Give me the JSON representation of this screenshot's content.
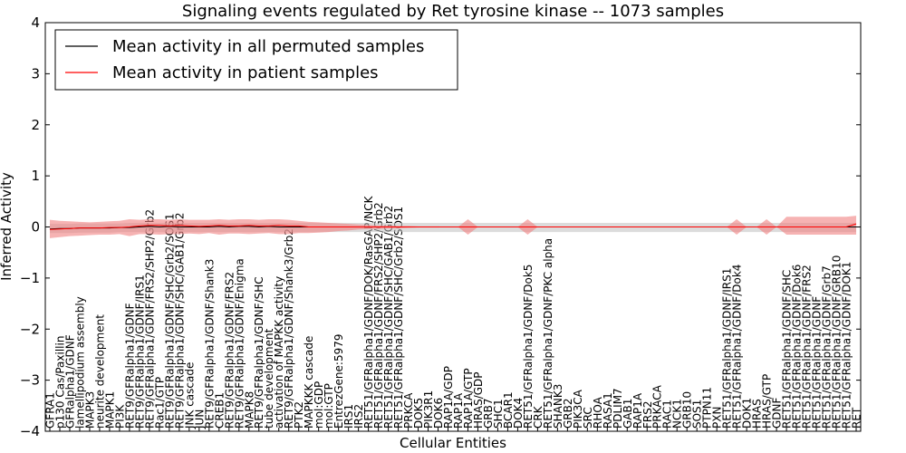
{
  "chart_data": {
    "type": "line",
    "title": "Signaling events regulated by Ret tyrosine kinase -- 1073 samples",
    "xlabel": "Cellular Entities",
    "ylabel": "Inferred Activity",
    "ylim": [
      -4,
      4
    ],
    "yticks": [
      -4,
      -3,
      -2,
      -1,
      0,
      1,
      2,
      3,
      4
    ],
    "ytick_labels": [
      "−4",
      "−3",
      "−2",
      "−1",
      "0",
      "1",
      "2",
      "3",
      "4"
    ],
    "legend": {
      "location": "top-left",
      "entries": [
        "Mean activity in all permuted samples",
        "Mean activity in patient samples"
      ]
    },
    "categories": [
      "GFRA1",
      "p130 Cas/Paxillin",
      "GFRalpha1/GDNF",
      "lamellipodium assembly",
      "MAPK3",
      "neurite development",
      "MAPK1",
      "PI3K",
      "RET9/GFRalpha1/GDNF",
      "RET9/GFRalpha1/GDNF/IRS1",
      "RET9/GFRalpha1/GDNF/FRS2/SHP2/Grb2",
      "Rac1/GTP",
      "RET9/GFRalpha1/GDNF/SHC/Grb2/SOS1",
      "RET9/GFRalpha1/GDNF/SHC/GAB1/Grb2",
      "JNK cascade",
      "JUN",
      "RET9/GFRalpha1/GDNF/Shank3",
      "CREB1",
      "RET9/GFRalpha1/GDNF/FRS2",
      "RET9/GFRalpha1/GDNF/Enigma",
      "MAPK8",
      "RET9/GFRalpha1/GDNF/SHC",
      "tube development",
      "activation of MAPKK activity",
      "RET9/GFRalpha1/GDNF/Shank3/Grb2",
      "PTK2",
      "MAPKKK cascade",
      "mol:GDP",
      "mol:GTP",
      "EntrezGene:5979",
      "IRS1",
      "IRS2",
      "RET51/GFRalpha1/GDNF/DOK/RasGAP/NCK",
      "RET51/GFRalpha1/GDNF/FRS2/SHP2/Grb2",
      "RET51/GFRalpha1/GDNF/SHC/GAB1/Grb2",
      "RET51/GFRalpha1/GDNF/SHC/Grb2/SOS1",
      "PRKCA",
      "DOK5",
      "PIK3R1",
      "DOK6",
      "RAP1A/GDP",
      "RAP1A",
      "RAP1A/GTP",
      "HRAS/GDP",
      "GRB7",
      "SHC1",
      "BCAR1",
      "DOK4",
      "RET51/GFRalpha1/GDNF/Dok5",
      "CRK",
      "RET51/GFRalpha1/GDNF/PKC alpha",
      "SHANK3",
      "GRB2",
      "PIK3CA",
      "SRC",
      "RHOA",
      "RASA1",
      "PDLIM7",
      "GAB1",
      "RAP1A",
      "FRS2",
      "PRKACA",
      "RAC1",
      "NCK1",
      "GRB10",
      "SOS1",
      "PTPN11",
      "PXN",
      "RET51/GFRalpha1/GDNF/IRS1",
      "RET51/GFRalpha1/GDNF/Dok4",
      "DOK1",
      "HRAS",
      "HRAS/GTP",
      "GDNF",
      "RET51/GFRalpha1/GDNF/SHC",
      "RET51/GFRalpha1/GDNF/Dok6",
      "RET51/GFRalpha1/GDNF/FRS2",
      "RET51/GFRalpha1/GDNF",
      "RET51/GFRalpha1/GDNF/Grb7",
      "RET51/GFRalpha1/GDNF/GRB10",
      "RET51/GFRalpha1/GDNF/DOK1",
      "RET"
    ],
    "series": [
      {
        "name": "Mean activity in all permuted samples",
        "color": "#000000",
        "band_color": "#c0c0c0",
        "values": [
          -0.04,
          -0.03,
          -0.03,
          -0.02,
          -0.02,
          -0.02,
          -0.02,
          -0.01,
          -0.01,
          0.0,
          0.01,
          0.0,
          0.01,
          0.0,
          0.0,
          0.0,
          0.0,
          0.01,
          0.0,
          0.01,
          0.01,
          0.0,
          0.01,
          0.0,
          0.0,
          0.0,
          0.0,
          0.0,
          0.0,
          0.0,
          0.0,
          0.0,
          0.0,
          0.0,
          0.0,
          0.0,
          0.0,
          0.0,
          0.0,
          0.0,
          0.0,
          0.0,
          0.0,
          0.0,
          0.0,
          0.0,
          0.0,
          0.0,
          0.0,
          0.0,
          0.0,
          0.0,
          0.0,
          0.0,
          0.0,
          0.0,
          0.0,
          0.0,
          0.0,
          0.0,
          0.0,
          0.0,
          0.0,
          0.0,
          0.0,
          0.0,
          0.0,
          0.0,
          0.0,
          0.0,
          0.0,
          0.0,
          0.0,
          0.0,
          0.0,
          0.0,
          0.0,
          0.0,
          0.0,
          0.0,
          0.0,
          0.0
        ],
        "band_lower": [
          -0.12,
          -0.12,
          -0.12,
          -0.11,
          -0.11,
          -0.11,
          -0.11,
          -0.1,
          -0.1,
          -0.1,
          -0.1,
          -0.1,
          -0.1,
          -0.1,
          -0.1,
          -0.1,
          -0.1,
          -0.1,
          -0.1,
          -0.1,
          -0.1,
          -0.1,
          -0.1,
          -0.1,
          -0.1,
          -0.1,
          -0.1,
          -0.1,
          -0.1,
          -0.1,
          -0.1,
          -0.1,
          -0.1,
          -0.1,
          -0.1,
          -0.1,
          -0.1,
          -0.1,
          -0.1,
          -0.1,
          -0.1,
          -0.1,
          -0.1,
          -0.1,
          -0.1,
          -0.1,
          -0.1,
          -0.1,
          -0.1,
          -0.1,
          -0.1,
          -0.1,
          -0.1,
          -0.1,
          -0.1,
          -0.1,
          -0.1,
          -0.1,
          -0.1,
          -0.1,
          -0.1,
          -0.1,
          -0.1,
          -0.1,
          -0.1,
          -0.1,
          -0.1,
          -0.1,
          -0.1,
          -0.1,
          -0.1,
          -0.1,
          -0.1,
          -0.1,
          -0.1,
          -0.1,
          -0.1,
          -0.1,
          -0.1,
          -0.1,
          -0.1,
          -0.1
        ],
        "band_upper": [
          0.06,
          0.06,
          0.06,
          0.07,
          0.07,
          0.07,
          0.07,
          0.07,
          0.08,
          0.08,
          0.08,
          0.08,
          0.08,
          0.08,
          0.08,
          0.08,
          0.08,
          0.08,
          0.08,
          0.08,
          0.08,
          0.08,
          0.08,
          0.08,
          0.08,
          0.08,
          0.08,
          0.08,
          0.08,
          0.08,
          0.08,
          0.08,
          0.08,
          0.08,
          0.08,
          0.08,
          0.08,
          0.08,
          0.08,
          0.08,
          0.08,
          0.08,
          0.08,
          0.08,
          0.08,
          0.08,
          0.08,
          0.08,
          0.08,
          0.08,
          0.08,
          0.08,
          0.08,
          0.08,
          0.08,
          0.08,
          0.08,
          0.08,
          0.08,
          0.08,
          0.08,
          0.08,
          0.08,
          0.08,
          0.08,
          0.08,
          0.08,
          0.08,
          0.08,
          0.08,
          0.08,
          0.08,
          0.08,
          0.08,
          0.08,
          0.08,
          0.08,
          0.08,
          0.08,
          0.08,
          0.08,
          0.08
        ]
      },
      {
        "name": "Mean activity in patient samples",
        "color": "#ff0000",
        "band_color": "#f08080",
        "values": [
          -0.05,
          -0.04,
          -0.03,
          -0.02,
          -0.02,
          -0.02,
          -0.01,
          -0.01,
          0.0,
          0.02,
          0.03,
          0.03,
          0.02,
          0.03,
          0.02,
          0.01,
          0.02,
          0.03,
          0.02,
          0.02,
          0.03,
          0.02,
          0.02,
          0.03,
          0.02,
          0.02,
          0.0,
          0.0,
          0.0,
          0.0,
          0.0,
          0.0,
          0.0,
          0.0,
          0.0,
          0.0,
          0.0,
          0.0,
          0.0,
          0.0,
          0.0,
          0.0,
          0.0,
          0.0,
          0.0,
          0.0,
          0.0,
          0.0,
          0.0,
          0.0,
          0.0,
          0.0,
          0.0,
          0.0,
          0.0,
          0.0,
          0.0,
          0.0,
          0.0,
          0.0,
          0.0,
          0.0,
          0.0,
          0.0,
          0.0,
          0.0,
          0.0,
          0.0,
          0.0,
          0.0,
          0.0,
          0.0,
          0.0,
          0.0,
          0.0,
          0.0,
          0.0,
          0.0,
          0.0,
          0.0,
          0.0,
          0.06
        ],
        "band_lower": [
          -0.22,
          -0.2,
          -0.18,
          -0.17,
          -0.16,
          -0.15,
          -0.15,
          -0.14,
          -0.18,
          -0.14,
          -0.14,
          -0.15,
          -0.14,
          -0.14,
          -0.13,
          -0.14,
          -0.12,
          -0.15,
          -0.13,
          -0.13,
          -0.14,
          -0.13,
          -0.12,
          -0.14,
          -0.14,
          -0.12,
          -0.12,
          -0.11,
          -0.1,
          -0.08,
          -0.07,
          -0.05,
          -0.04,
          -0.04,
          -0.03,
          -0.03,
          -0.02,
          -0.01,
          -0.01,
          -0.01,
          0.0,
          0.0,
          -0.15,
          0.0,
          0.0,
          0.0,
          0.0,
          0.0,
          -0.15,
          0.0,
          0.0,
          0.0,
          0.0,
          0.0,
          0.0,
          0.0,
          0.0,
          0.0,
          0.0,
          0.0,
          0.0,
          0.0,
          0.0,
          0.0,
          0.0,
          0.0,
          0.0,
          0.0,
          0.0,
          -0.15,
          0.0,
          0.0,
          -0.15,
          0.0,
          -0.15,
          -0.15,
          -0.15,
          -0.15,
          -0.15,
          -0.15,
          -0.15,
          -0.15
        ],
        "band_upper": [
          0.14,
          0.12,
          0.11,
          0.1,
          0.09,
          0.1,
          0.11,
          0.12,
          0.15,
          0.14,
          0.15,
          0.15,
          0.14,
          0.15,
          0.14,
          0.14,
          0.14,
          0.15,
          0.14,
          0.15,
          0.15,
          0.14,
          0.15,
          0.15,
          0.14,
          0.12,
          0.1,
          0.09,
          0.08,
          0.07,
          0.06,
          0.05,
          0.04,
          0.03,
          0.03,
          0.02,
          0.02,
          0.01,
          0.01,
          0.01,
          0.0,
          0.0,
          0.15,
          0.0,
          0.0,
          0.0,
          0.0,
          0.0,
          0.15,
          0.0,
          0.0,
          0.0,
          0.0,
          0.0,
          0.0,
          0.0,
          0.0,
          0.0,
          0.0,
          0.0,
          0.0,
          0.0,
          0.0,
          0.0,
          0.0,
          0.0,
          0.0,
          0.0,
          0.0,
          0.15,
          0.0,
          0.0,
          0.15,
          0.0,
          0.2,
          0.2,
          0.2,
          0.2,
          0.2,
          0.2,
          0.2,
          0.22
        ]
      }
    ]
  }
}
